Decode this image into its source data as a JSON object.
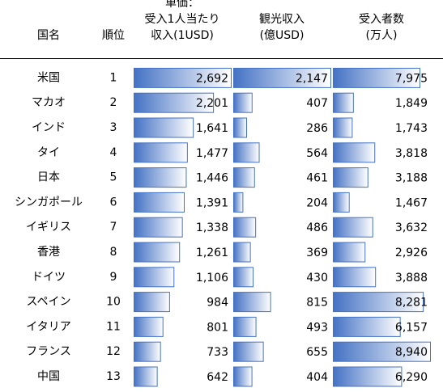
{
  "table": {
    "header": [
      [
        "国名"
      ],
      [
        "順位"
      ],
      [
        "単価：",
        "受入1人当たり",
        "収入(1USD)"
      ],
      [
        "観光収入",
        "(億USD)"
      ],
      [
        "受入者数",
        "(万人)"
      ]
    ],
    "rows": [
      [
        "米国",
        "1",
        {
          "value": 2692,
          "label": "2,692"
        },
        {
          "value": 2147,
          "label": "2,147"
        },
        {
          "value": 7975,
          "label": "7,975"
        }
      ],
      [
        "マカオ",
        "2",
        {
          "value": 2201,
          "label": "2,201"
        },
        {
          "value": 407,
          "label": "407"
        },
        {
          "value": 1849,
          "label": "1,849"
        }
      ],
      [
        "インド",
        "3",
        {
          "value": 1641,
          "label": "1,641"
        },
        {
          "value": 286,
          "label": "286"
        },
        {
          "value": 1743,
          "label": "1,743"
        }
      ],
      [
        "タイ",
        "4",
        {
          "value": 1477,
          "label": "1,477"
        },
        {
          "value": 564,
          "label": "564"
        },
        {
          "value": 3818,
          "label": "3,818"
        }
      ],
      [
        "日本",
        "5",
        {
          "value": 1446,
          "label": "1,446"
        },
        {
          "value": 461,
          "label": "461"
        },
        {
          "value": 3188,
          "label": "3,188"
        }
      ],
      [
        "シンガポール",
        "6",
        {
          "value": 1391,
          "label": "1,391"
        },
        {
          "value": 204,
          "label": "204"
        },
        {
          "value": 1467,
          "label": "1,467"
        }
      ],
      [
        "イギリス",
        "7",
        {
          "value": 1338,
          "label": "1,338"
        },
        {
          "value": 486,
          "label": "486"
        },
        {
          "value": 3632,
          "label": "3,632"
        }
      ],
      [
        "香港",
        "8",
        {
          "value": 1261,
          "label": "1,261"
        },
        {
          "value": 369,
          "label": "369"
        },
        {
          "value": 2926,
          "label": "2,926"
        }
      ],
      [
        "ドイツ",
        "9",
        {
          "value": 1106,
          "label": "1,106"
        },
        {
          "value": 430,
          "label": "430"
        },
        {
          "value": 3888,
          "label": "3,888"
        }
      ],
      [
        "スペイン",
        "10",
        {
          "value": 984,
          "label": "984"
        },
        {
          "value": 815,
          "label": "815"
        },
        {
          "value": 8281,
          "label": "8,281"
        }
      ],
      [
        "イタリア",
        "11",
        {
          "value": 801,
          "label": "801"
        },
        {
          "value": 493,
          "label": "493"
        },
        {
          "value": 6157,
          "label": "6,157"
        }
      ],
      [
        "フランス",
        "12",
        {
          "value": 733,
          "label": "733"
        },
        {
          "value": 655,
          "label": "655"
        },
        {
          "value": 8940,
          "label": "8,940"
        }
      ],
      [
        "中国",
        "13",
        {
          "value": 642,
          "label": "642"
        },
        {
          "value": 404,
          "label": "404"
        },
        {
          "value": 6290,
          "label": "6,290"
        }
      ]
    ]
  }
}
